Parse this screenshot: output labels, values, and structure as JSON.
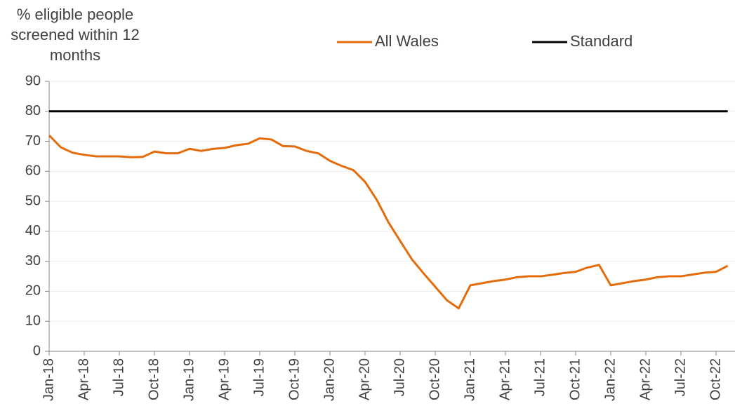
{
  "chart_data": {
    "type": "line",
    "ylabel": "% eligible people screened within 12 months",
    "categories": [
      "Jan-18",
      null,
      null,
      "Apr-18",
      null,
      null,
      "Jul-18",
      null,
      null,
      "Oct-18",
      null,
      null,
      "Jan-19",
      null,
      null,
      "Apr-19",
      null,
      null,
      "Jul-19",
      null,
      null,
      "Oct-19",
      null,
      null,
      "Jan-20",
      null,
      null,
      "Apr-20",
      null,
      null,
      "Jul-20",
      null,
      null,
      "Oct-20",
      null,
      null,
      "Jan-21",
      null,
      null,
      "Apr-21",
      null,
      null,
      "Jul-21",
      null,
      null,
      "Oct-21",
      null,
      null,
      "Jan-22",
      null,
      null,
      "Apr-22",
      null,
      null,
      "Jul-22",
      null,
      null,
      "Oct-22",
      null
    ],
    "series": [
      {
        "name": "All Wales",
        "color": "#e46c0a",
        "values": [
          72,
          68,
          66.2,
          65.5,
          65,
          65,
          65,
          64.7,
          64.8,
          66.6,
          66,
          66,
          67.5,
          66.8,
          67.5,
          67.8,
          68.7,
          69.2,
          71,
          70.6,
          68.4,
          68.3,
          66.8,
          66,
          63.5,
          61.8,
          60.4,
          56.5,
          50.5,
          43,
          36.8,
          30.7,
          26,
          21.5,
          17,
          14.3,
          22,
          22.7,
          23.4,
          23.9,
          24.7,
          25,
          25,
          25.5,
          26.1,
          26.5,
          27.9,
          28.8,
          22,
          22.7,
          23.4,
          23.9,
          24.7,
          25,
          25,
          25.6,
          26.2,
          26.5,
          28.5
        ]
      },
      {
        "name": "Standard",
        "color": "#000000",
        "values": [
          80,
          80,
          80,
          80,
          80,
          80,
          80,
          80,
          80,
          80,
          80,
          80,
          80,
          80,
          80,
          80,
          80,
          80,
          80,
          80,
          80,
          80,
          80,
          80,
          80,
          80,
          80,
          80,
          80,
          80,
          80,
          80,
          80,
          80,
          80,
          80,
          80,
          80,
          80,
          80,
          80,
          80,
          80,
          80,
          80,
          80,
          80,
          80,
          80,
          80,
          80,
          80,
          80,
          80,
          80,
          80,
          80,
          80,
          80
        ]
      }
    ],
    "ylim": [
      0,
      90
    ],
    "yticks": [
      0,
      10,
      20,
      30,
      40,
      50,
      60,
      70,
      80,
      90
    ],
    "grid": true
  }
}
